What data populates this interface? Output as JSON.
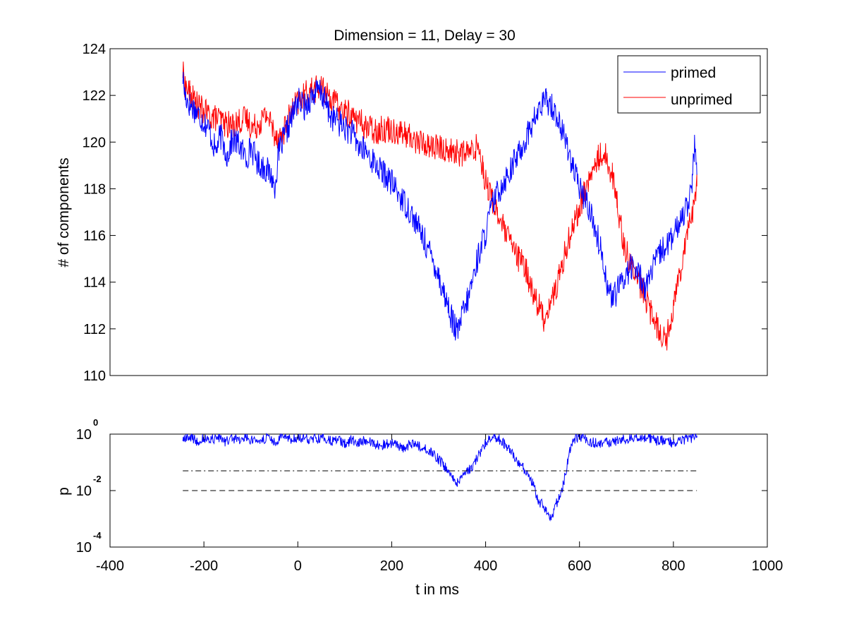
{
  "chart_data": [
    {
      "type": "line",
      "title": "Dimension  = 11, Delay = 30",
      "xlabel": "",
      "ylabel": "# of components",
      "xlim": [
        -400,
        1000
      ],
      "ylim": [
        110,
        124
      ],
      "yticks": [
        110,
        112,
        114,
        116,
        118,
        120,
        122,
        124
      ],
      "ytick_labels": [
        "110",
        "112",
        "114",
        "116",
        "118",
        "120",
        "122",
        "124"
      ],
      "grid": false,
      "legend_position": "top-right",
      "series": [
        {
          "name": "primed",
          "color": "#0000ff",
          "x": [
            -245,
            -240,
            -230,
            -220,
            -205,
            -190,
            -175,
            -165,
            -150,
            -140,
            -125,
            -110,
            -100,
            -85,
            -70,
            -55,
            -50,
            -40,
            -25,
            -10,
            0,
            15,
            30,
            45,
            55,
            70,
            85,
            100,
            115,
            130,
            145,
            160,
            175,
            190,
            205,
            220,
            235,
            250,
            265,
            280,
            295,
            310,
            320,
            330,
            340,
            350,
            360,
            370,
            385,
            400,
            410,
            420,
            435,
            450,
            465,
            480,
            495,
            510,
            520,
            530,
            540,
            550,
            560,
            575,
            590,
            605,
            620,
            635,
            650,
            660,
            670,
            680,
            695,
            710,
            725,
            740,
            755,
            770,
            785,
            800,
            815,
            830,
            840,
            845,
            850
          ],
          "values": [
            122.8,
            122.0,
            121.6,
            121.4,
            121.0,
            120.6,
            119.6,
            120.3,
            119.4,
            120.1,
            119.9,
            119.3,
            119.8,
            119.1,
            118.9,
            118.5,
            118.0,
            119.6,
            120.4,
            121.2,
            121.8,
            121.5,
            122.0,
            122.2,
            121.9,
            121.1,
            120.9,
            120.6,
            120.4,
            119.8,
            119.6,
            119.2,
            118.8,
            118.5,
            118.1,
            117.6,
            117.2,
            116.6,
            116.0,
            115.3,
            114.6,
            113.6,
            113.0,
            112.3,
            111.8,
            112.6,
            113.1,
            113.9,
            115.2,
            116.1,
            117.0,
            117.6,
            118.2,
            118.7,
            119.3,
            119.9,
            120.6,
            121.2,
            121.6,
            121.8,
            121.6,
            121.2,
            120.6,
            119.8,
            118.6,
            117.8,
            117.2,
            116.2,
            115.0,
            113.8,
            113.3,
            113.6,
            114.2,
            114.7,
            114.4,
            113.8,
            114.5,
            115.2,
            115.6,
            115.9,
            116.7,
            117.4,
            118.2,
            119.8,
            118.6
          ]
        },
        {
          "name": "unprimed",
          "color": "#ff0000",
          "x": [
            -245,
            -240,
            -230,
            -215,
            -200,
            -185,
            -170,
            -155,
            -140,
            -125,
            -110,
            -95,
            -80,
            -65,
            -50,
            -35,
            -20,
            -5,
            10,
            25,
            40,
            55,
            70,
            90,
            110,
            130,
            150,
            170,
            190,
            210,
            230,
            250,
            270,
            290,
            310,
            330,
            350,
            370,
            385,
            395,
            405,
            415,
            425,
            440,
            455,
            470,
            485,
            500,
            515,
            525,
            535,
            550,
            565,
            580,
            595,
            610,
            625,
            640,
            650,
            660,
            670,
            680,
            695,
            710,
            725,
            740,
            755,
            770,
            785,
            800,
            815,
            830,
            840,
            850
          ],
          "values": [
            123.0,
            122.4,
            122.1,
            121.6,
            121.3,
            121.1,
            121.0,
            120.8,
            120.7,
            120.9,
            121.0,
            120.6,
            120.9,
            121.2,
            120.4,
            120.2,
            121.0,
            121.6,
            121.9,
            122.2,
            122.3,
            122.2,
            121.9,
            121.4,
            121.2,
            120.9,
            120.6,
            120.5,
            120.6,
            120.5,
            120.3,
            120.1,
            119.9,
            119.8,
            119.7,
            119.6,
            119.5,
            119.6,
            119.9,
            118.8,
            118.0,
            117.5,
            117.0,
            116.2,
            115.6,
            115.0,
            114.6,
            113.6,
            112.9,
            112.4,
            113.0,
            113.7,
            114.9,
            116.1,
            116.9,
            117.8,
            118.6,
            119.3,
            119.6,
            119.2,
            118.6,
            117.4,
            115.6,
            114.7,
            114.0,
            113.4,
            112.5,
            112.0,
            111.5,
            113.0,
            114.6,
            116.3,
            117.0,
            118.1
          ]
        }
      ]
    },
    {
      "type": "line",
      "title": "",
      "xlabel": "t in ms",
      "ylabel": "p",
      "xlim": [
        -400,
        1000
      ],
      "ylim_log10": [
        -4,
        0
      ],
      "xticks": [
        -400,
        -200,
        0,
        200,
        400,
        600,
        800,
        1000
      ],
      "xtick_labels": [
        "-400",
        "-200",
        "0",
        "200",
        "400",
        "600",
        "800",
        "1000"
      ],
      "yticks_log10": [
        -4,
        -2,
        0
      ],
      "ytick_labels": [
        {
          "base": "10",
          "exp": "-4"
        },
        {
          "base": "10",
          "exp": "-2"
        },
        {
          "base": "10",
          "exp": "0"
        }
      ],
      "grid": false,
      "series": [
        {
          "name": "p",
          "color": "#0000ff",
          "x": [
            -245,
            -230,
            -215,
            -200,
            -185,
            -170,
            -155,
            -140,
            -125,
            -110,
            -95,
            -80,
            -65,
            -50,
            -35,
            -20,
            -5,
            10,
            25,
            40,
            55,
            70,
            85,
            100,
            115,
            130,
            145,
            160,
            175,
            190,
            205,
            220,
            235,
            250,
            265,
            280,
            290,
            300,
            310,
            320,
            330,
            340,
            350,
            360,
            370,
            380,
            390,
            400,
            410,
            420,
            430,
            440,
            450,
            460,
            470,
            480,
            490,
            500,
            505,
            510,
            515,
            520,
            525,
            530,
            535,
            540,
            545,
            550,
            555,
            560,
            565,
            570,
            575,
            580,
            590,
            600,
            615,
            630,
            645,
            660,
            675,
            690,
            705,
            720,
            735,
            750,
            765,
            780,
            795,
            810,
            825,
            840,
            850
          ],
          "values_log10": [
            -0.2,
            -0.1,
            -0.25,
            -0.15,
            -0.2,
            -0.1,
            -0.3,
            -0.15,
            -0.2,
            -0.1,
            -0.25,
            -0.2,
            -0.15,
            -0.3,
            -0.1,
            -0.2,
            -0.15,
            -0.1,
            -0.2,
            -0.15,
            -0.1,
            -0.25,
            -0.2,
            -0.35,
            -0.2,
            -0.3,
            -0.2,
            -0.3,
            -0.4,
            -0.35,
            -0.3,
            -0.5,
            -0.4,
            -0.35,
            -0.45,
            -0.6,
            -0.7,
            -0.9,
            -1.1,
            -1.3,
            -1.5,
            -1.7,
            -1.55,
            -1.35,
            -1.2,
            -0.9,
            -0.6,
            -0.35,
            -0.15,
            -0.1,
            -0.2,
            -0.35,
            -0.55,
            -0.8,
            -1.0,
            -1.2,
            -1.45,
            -1.7,
            -2.0,
            -2.3,
            -2.5,
            -2.4,
            -2.6,
            -2.7,
            -2.9,
            -3.0,
            -2.7,
            -2.5,
            -2.3,
            -2.1,
            -1.8,
            -1.4,
            -1.0,
            -0.5,
            -0.2,
            -0.1,
            -0.2,
            -0.3,
            -0.35,
            -0.3,
            -0.25,
            -0.2,
            -0.15,
            -0.1,
            -0.2,
            -0.15,
            -0.25,
            -0.2,
            -0.3,
            -0.25,
            -0.2,
            -0.15,
            -0.05
          ]
        },
        {
          "name": "threshold dash-dot",
          "color": "#000000",
          "style": "dash-dot",
          "x": [
            -245,
            850
          ],
          "values_log10": [
            -1.3,
            -1.3
          ]
        },
        {
          "name": "threshold dashed",
          "color": "#000000",
          "style": "dashed",
          "x": [
            -245,
            850
          ],
          "values_log10": [
            -2,
            -2
          ]
        }
      ]
    }
  ]
}
